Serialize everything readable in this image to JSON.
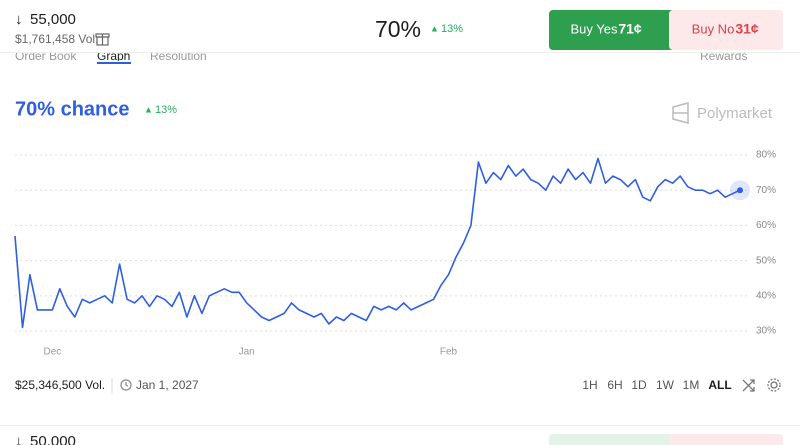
{
  "header": {
    "target": "55,000",
    "volume": "$1,761,458 Vol.",
    "price": "70%",
    "change": "13%",
    "buy_yes": {
      "label": "Buy Yes",
      "price": "71¢"
    },
    "buy_no": {
      "label": "Buy No",
      "price": "31¢"
    }
  },
  "tabs": [
    "Order Book",
    "Graph",
    "Resolution"
  ],
  "tab_right": "Rewards",
  "chance": {
    "text": "70% chance",
    "change": "13%"
  },
  "brand": "Polymarket",
  "chart_data": {
    "type": "line",
    "color": "#2f5fe0",
    "categories": [
      null,
      null,
      null,
      null,
      null,
      "Dec",
      null,
      null,
      null,
      null,
      null,
      null,
      null,
      null,
      null,
      null,
      null,
      null,
      null,
      null,
      null,
      null,
      null,
      null,
      null,
      null,
      null,
      null,
      null,
      null,
      null,
      "Jan",
      null,
      null,
      null,
      null,
      null,
      null,
      null,
      null,
      null,
      null,
      null,
      null,
      null,
      null,
      null,
      null,
      null,
      null,
      null,
      null,
      null,
      null,
      null,
      null,
      null,
      null,
      "Feb",
      null,
      null,
      null,
      null,
      null,
      null,
      null,
      null,
      null,
      null,
      null,
      null,
      null,
      null,
      null,
      null,
      null,
      null,
      null,
      null,
      null,
      null,
      null,
      null,
      null,
      null,
      null,
      null,
      null,
      null,
      null,
      null,
      null,
      null,
      null,
      null,
      null,
      null,
      null
    ],
    "values": [
      57,
      31,
      46,
      36,
      36,
      36,
      42,
      37,
      34,
      39,
      38,
      39,
      40,
      38,
      49,
      39,
      38,
      40,
      37,
      40,
      39,
      37,
      41,
      34,
      40,
      35,
      40,
      41,
      42,
      41,
      41,
      38,
      36,
      34,
      33,
      34,
      35,
      38,
      36,
      35,
      34,
      35,
      32,
      34,
      33,
      35,
      34,
      33,
      37,
      36,
      37,
      36,
      38,
      36,
      37,
      38,
      39,
      43,
      46,
      51,
      55,
      60,
      78,
      72,
      75,
      73,
      77,
      74,
      76,
      73,
      72,
      70,
      74,
      72,
      76,
      73,
      75,
      72,
      79,
      72,
      74,
      73,
      71,
      73,
      68,
      67,
      71,
      73,
      72,
      74,
      71,
      70,
      70,
      69,
      70,
      68,
      69,
      70
    ],
    "ylim": [
      27,
      84
    ],
    "yticks": [
      {
        "value": 30,
        "label": "30%"
      },
      {
        "value": 40,
        "label": "40%"
      },
      {
        "value": 50,
        "label": "50%"
      },
      {
        "value": 60,
        "label": "60%"
      },
      {
        "value": 70,
        "label": "70%"
      },
      {
        "value": 80,
        "label": "80%"
      }
    ],
    "grid": true
  },
  "footer": {
    "volume": "$25,346,500 Vol.",
    "date": "Jan 1, 2027",
    "ranges": [
      "1H",
      "6H",
      "1D",
      "1W",
      "1M",
      "ALL"
    ]
  },
  "next_row": {
    "target": "50,000"
  }
}
